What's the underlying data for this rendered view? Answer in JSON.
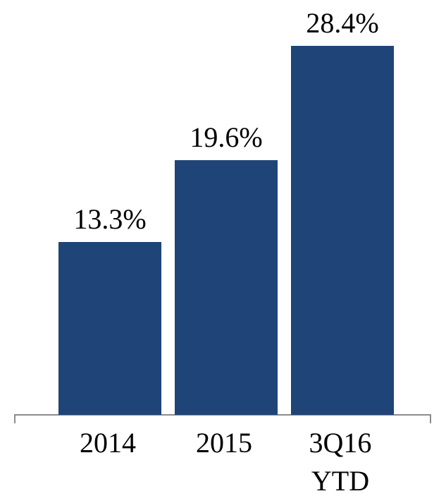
{
  "chart_data": {
    "type": "bar",
    "categories": [
      "2014",
      "2015",
      "3Q16 YTD"
    ],
    "values": [
      13.3,
      19.6,
      28.4
    ],
    "value_labels": [
      "13.3%",
      "19.6%",
      "28.4%"
    ],
    "color": "#1f4478"
  }
}
